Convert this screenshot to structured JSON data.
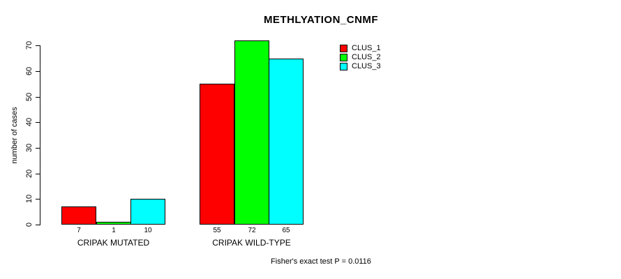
{
  "chart_data": {
    "type": "bar",
    "title": "METHLYATION_CNMF",
    "ylabel": "number of cases",
    "xlabel": "",
    "categories": [
      "CRIPAK MUTATED",
      "CRIPAK WILD-TYPE"
    ],
    "series": [
      {
        "name": "CLUS_1",
        "color": "#ff0000",
        "values": [
          7,
          55
        ]
      },
      {
        "name": "CLUS_2",
        "color": "#00ff00",
        "values": [
          1,
          72
        ]
      },
      {
        "name": "CLUS_3",
        "color": "#00ffff",
        "values": [
          10,
          65
        ]
      }
    ],
    "bar_value_labels": [
      [
        "7",
        "1",
        "10"
      ],
      [
        "55",
        "72",
        "65"
      ]
    ],
    "yticks": [
      0,
      10,
      20,
      30,
      40,
      50,
      60,
      70
    ],
    "ylim": [
      0,
      72
    ],
    "grid": false,
    "legend_position": "top-right",
    "legend_entries": [
      "CLUS_1",
      "CLUS_2",
      "CLUS_3"
    ],
    "annotation": "Fisher's exact test P = 0.0116",
    "colors": {
      "axis": "#000000",
      "text": "#000000",
      "background": "#ffffff"
    }
  }
}
